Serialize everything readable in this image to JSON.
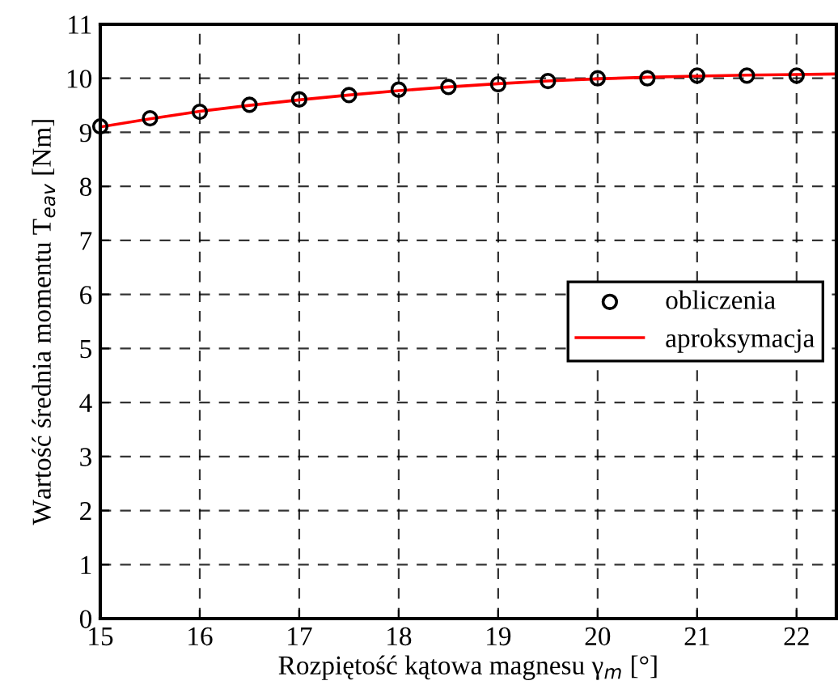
{
  "chart_data": {
    "type": "scatter",
    "xlabel": "Rozpiętość kątowa magnesu γ$_{m}$ [°]",
    "ylabel": "Wartość średnia momentu T$_{eav}$ [Nm]",
    "xlim": [
      15,
      22.4
    ],
    "xticks": [
      15,
      16,
      17,
      18,
      19,
      20,
      21,
      22
    ],
    "ylim": [
      0,
      11
    ],
    "yticks": [
      0,
      1,
      2,
      3,
      4,
      5,
      6,
      7,
      8,
      9,
      10,
      11
    ],
    "grid": true,
    "legend": "right",
    "series": [
      {
        "name": "obliczenia",
        "color": "#000000",
        "marker": "circle",
        "x": [
          15,
          15.5,
          16,
          16.5,
          17,
          17.5,
          18,
          18.5,
          19,
          19.5,
          20,
          20.5,
          21,
          21.5,
          22
        ],
        "values": [
          9.11,
          9.26,
          9.38,
          9.51,
          9.61,
          9.69,
          9.79,
          9.84,
          9.89,
          9.95,
          10.0,
          10.0,
          10.05,
          10.05,
          10.05
        ]
      },
      {
        "name": "aproksymacja",
        "type": "line",
        "color": "#ff0000",
        "line_style": "solid",
        "x": [
          15,
          15.5,
          16,
          16.5,
          17,
          17.5,
          18,
          18.5,
          19,
          19.5,
          20,
          20.5,
          21,
          21.5,
          22,
          22.4
        ],
        "values": [
          9.1,
          9.25,
          9.39,
          9.5,
          9.6,
          9.69,
          9.77,
          9.84,
          9.9,
          9.95,
          9.99,
          10.02,
          10.04,
          10.06,
          10.07,
          10.08
        ]
      }
    ]
  }
}
